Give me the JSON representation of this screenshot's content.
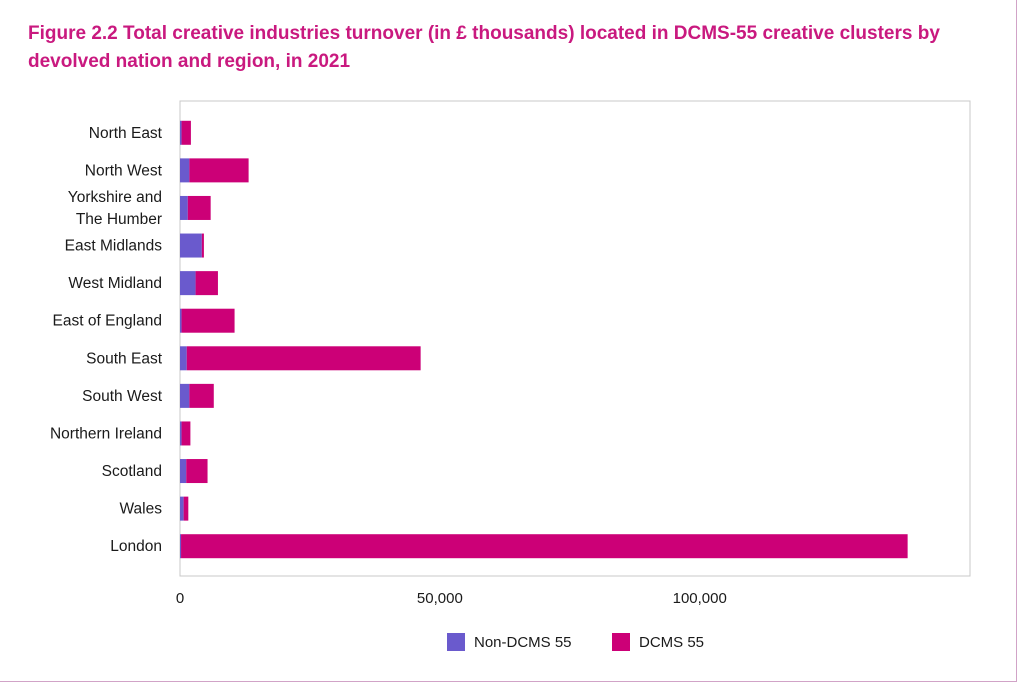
{
  "title": "Figure 2.2 Total creative industries turnover (in £ thousands) located in DCMS-55 creative clusters by devolved nation and region, in 2021",
  "chart_data": {
    "type": "bar",
    "orientation": "horizontal",
    "stacked": true,
    "categories": [
      [
        "North East"
      ],
      [
        "North West"
      ],
      [
        "Yorkshire and",
        "The Humber"
      ],
      [
        "East Midlands"
      ],
      [
        "West Midland"
      ],
      [
        "East of England"
      ],
      [
        "South East"
      ],
      [
        "South West"
      ],
      [
        "Northern Ireland"
      ],
      [
        "Scotland"
      ],
      [
        "Wales"
      ],
      [
        "London"
      ]
    ],
    "series": [
      {
        "name": "Non-DCMS 55",
        "color": "#6a5acd",
        "values": [
          300,
          1800,
          1500,
          4200,
          3000,
          300,
          1300,
          1800,
          300,
          1200,
          700,
          200
        ]
      },
      {
        "name": "DCMS 55",
        "color": "#cc0077",
        "values": [
          1800,
          11400,
          4400,
          400,
          4300,
          10200,
          45000,
          4700,
          1700,
          4100,
          900,
          139800
        ]
      }
    ],
    "x_ticks": [
      0,
      50000,
      100000
    ],
    "x_tick_labels": [
      "0",
      "50,000",
      "100,000"
    ],
    "xlim": [
      0,
      152000
    ],
    "grid": false,
    "legend_position": "bottom-center"
  }
}
